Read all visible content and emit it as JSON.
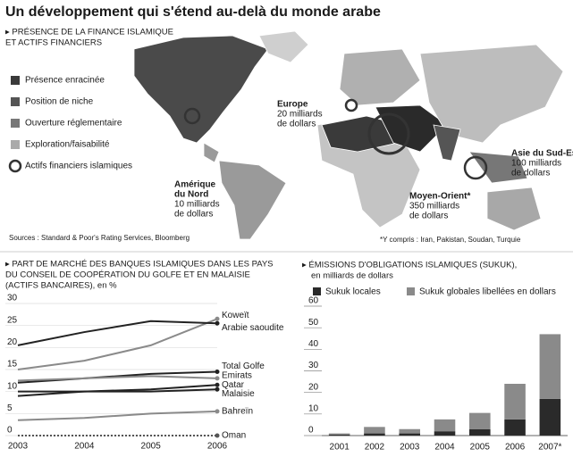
{
  "title": "Un développement qui s'étend au-delà du monde arabe",
  "map": {
    "heading": [
      "▸ PRÉSENCE DE LA FINANCE ISLAMIQUE",
      "ET ACTIFS FINANCIERS"
    ],
    "legend": [
      "Présence enracinée",
      "Position de niche",
      "Ouverture réglementaire",
      "Exploration/faisabilité",
      "Actifs financiers islamiques"
    ],
    "callouts": [
      {
        "name": [
          "Europe"
        ],
        "value": [
          "20 milliards",
          "de dollars"
        ]
      },
      {
        "name": [
          "Amérique",
          "du Nord"
        ],
        "value": [
          "10 milliards",
          "de dollars"
        ]
      },
      {
        "name": [
          "Moyen-Orient*"
        ],
        "value": [
          "350 milliards",
          "de dollars"
        ]
      },
      {
        "name": [
          "Asie du Sud-Est"
        ],
        "value": [
          "100 milliards",
          "de dollars"
        ]
      }
    ],
    "source": "Sources : Standard & Poor's Rating Services, Bloomberg",
    "footnote": "*Y compris : Iran, Pakistan, Soudan, Turquie"
  },
  "chart_data": [
    {
      "type": "line",
      "title": [
        "▸ PART DE MARCHÉ DES BANQUES ISLAMIQUES DANS LES PAYS",
        "DU CONSEIL DE COOPÉRATION DU GOLFE ET EN MALAISIE",
        "(ACTIFS BANCAIRES), en %"
      ],
      "categories": [
        "2003",
        "2004",
        "2005",
        "2006"
      ],
      "ylim": [
        0,
        30
      ],
      "yticks": [
        0,
        5,
        10,
        15,
        20,
        25,
        30
      ],
      "grid": true,
      "series": [
        {
          "name": "Koweït",
          "color": "#8a8a8a",
          "values": [
            15,
            17,
            20.5,
            26.5
          ]
        },
        {
          "name": "Arabie saoudite",
          "color": "#222222",
          "values": [
            20.5,
            23.5,
            26,
            25.5
          ]
        },
        {
          "name": "Total Golfe",
          "color": "#222222",
          "values": [
            12,
            13,
            14,
            14.5
          ]
        },
        {
          "name": "Emirats",
          "color": "#8a8a8a",
          "values": [
            12.5,
            13,
            13.5,
            13
          ]
        },
        {
          "name": "Qatar",
          "color": "#222222",
          "values": [
            9,
            10,
            10.5,
            11.5
          ]
        },
        {
          "name": "Malaisie",
          "color": "#222222",
          "values": [
            10,
            10,
            10,
            10.5
          ]
        },
        {
          "name": "Bahreïn",
          "color": "#8a8a8a",
          "values": [
            3.5,
            4,
            5,
            5.5
          ]
        },
        {
          "name": "Oman",
          "color": "#555555",
          "dashed": true,
          "values": [
            0,
            0,
            0,
            0
          ]
        }
      ]
    },
    {
      "type": "stacked-bar",
      "title": "▸ ÉMISSIONS D'OBLIGATIONS ISLAMIQUES (SUKUK),",
      "subtitle": "en milliards de dollars",
      "categories": [
        "2001",
        "2002",
        "2003",
        "2004",
        "2005",
        "2006",
        "2007*"
      ],
      "ylim": [
        0,
        60
      ],
      "yticks": [
        0,
        10,
        20,
        30,
        40,
        50,
        60
      ],
      "series": [
        {
          "name": "Sukuk locales",
          "color": "#2a2a2a",
          "values": [
            0.5,
            1,
            1,
            2,
            3,
            7.5,
            17
          ]
        },
        {
          "name": "Sukuk globales libellées en dollars",
          "color": "#8a8a8a",
          "values": [
            0.5,
            3,
            2,
            5.5,
            7.5,
            16.5,
            30
          ]
        }
      ]
    }
  ]
}
